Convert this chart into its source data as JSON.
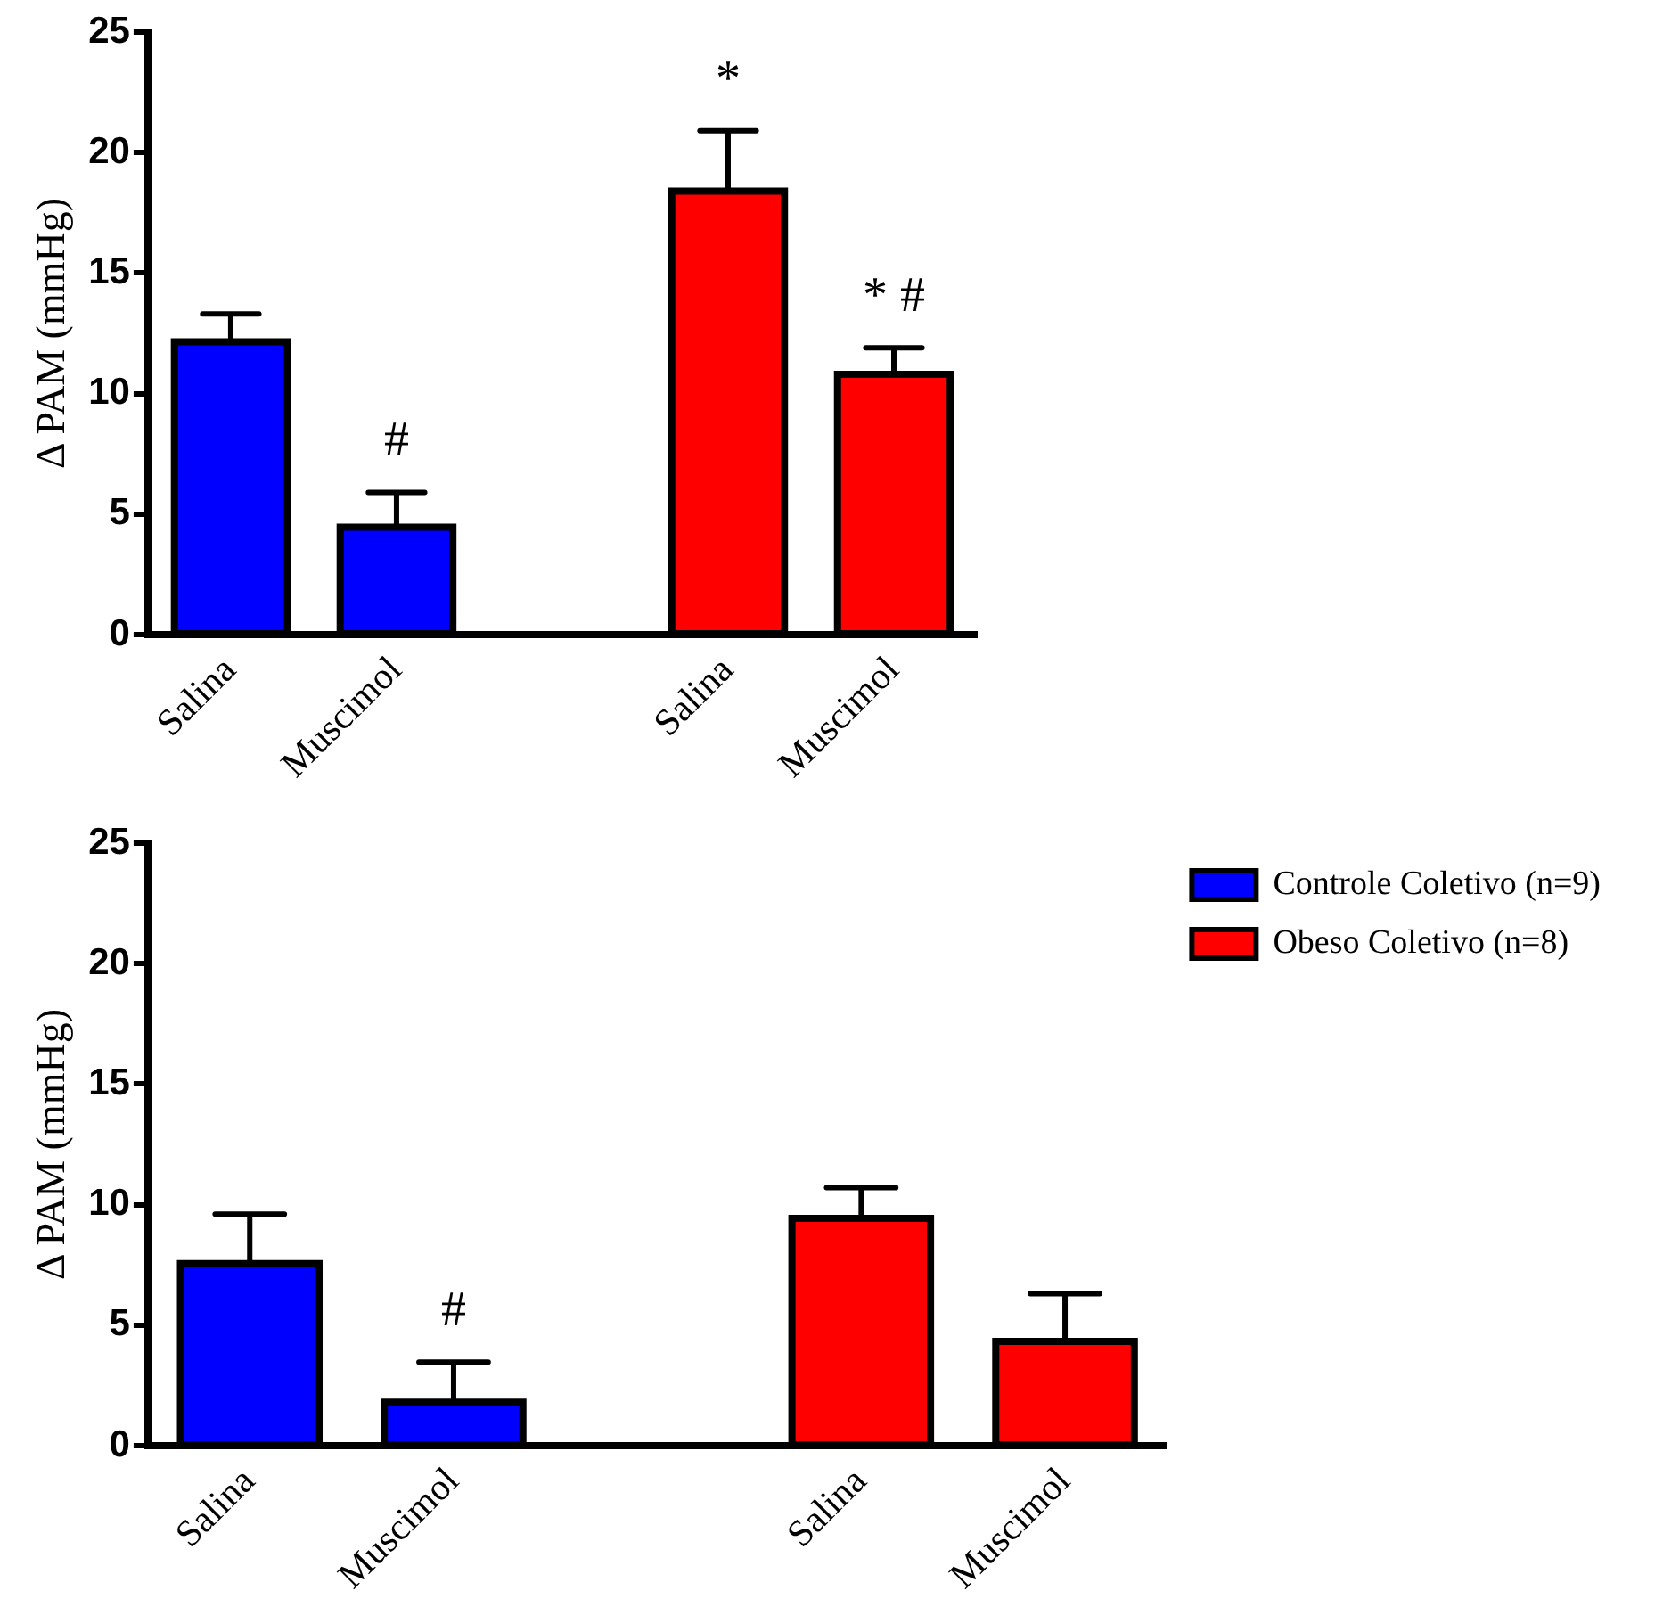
{
  "chart_data": [
    {
      "type": "bar",
      "ylabel": "Δ PAM (mmHg)",
      "categories": [
        "Salina",
        "Muscimol",
        null,
        "Salina",
        "Muscimol"
      ],
      "ylim": [
        0,
        25
      ],
      "yticks": [
        0,
        5,
        10,
        15,
        20,
        25
      ],
      "series": [
        {
          "color": "#0000ff",
          "values": [
            12.15,
            4.45,
            null,
            null,
            null
          ],
          "errors": [
            [
              12.15,
              13.3
            ],
            [
              4.45,
              5.9
            ],
            null,
            null,
            null
          ]
        },
        {
          "color": "#ff0000",
          "values": [
            null,
            null,
            null,
            18.4,
            10.8
          ],
          "errors": [
            null,
            null,
            null,
            [
              18.4,
              20.9
            ],
            [
              10.8,
              11.9
            ]
          ]
        }
      ],
      "annotations": [
        {
          "text": "*",
          "y": 20.9
        },
        {
          "text": "#",
          "x": "Muscimol",
          "y": 5.9
        },
        {
          "text": "* #",
          "y": 11.9
        }
      ]
    },
    {
      "type": "bar",
      "ylabel": "Δ PAM (mmHg)",
      "categories": [
        "Salina",
        "Muscimol",
        null,
        "Salina",
        "Muscimol"
      ],
      "ylim": [
        0,
        25
      ],
      "yticks": [
        0,
        5,
        10,
        15,
        20,
        25
      ],
      "legend": "right",
      "series": [
        {
          "name": "Controle Coletivo (n=9)",
          "color": "#0000ff",
          "values": [
            7.55,
            1.8,
            null,
            null,
            null
          ],
          "errors": [
            [
              7.55,
              9.6
            ],
            [
              1.8,
              3.46
            ],
            null,
            null,
            null
          ]
        },
        {
          "name": "Obeso Coletivo (n=8)",
          "color": "#ff0000",
          "values": [
            null,
            null,
            null,
            9.43,
            4.32
          ],
          "errors": [
            null,
            null,
            null,
            [
              9.43,
              10.7
            ],
            [
              4.32,
              6.3
            ]
          ]
        }
      ],
      "annotations": [
        {
          "text": "#",
          "x": "Muscimol",
          "y": 3.46
        }
      ]
    }
  ]
}
